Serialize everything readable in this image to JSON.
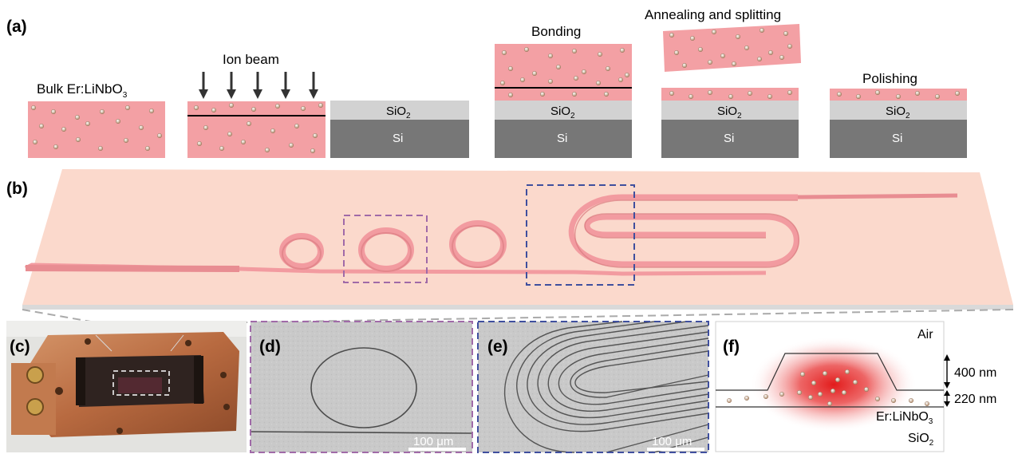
{
  "panels": {
    "a": "(a)",
    "b": "(b)",
    "c": "(c)",
    "d": "(d)",
    "e": "(e)",
    "f": "(f)"
  },
  "panel_a": {
    "bulk_label": "Bulk Er:LiNbO",
    "bulk_sub": "3",
    "ion_beam": "Ion beam",
    "bonding": "Bonding",
    "annealing": "Annealing and splitting",
    "polishing": "Polishing",
    "sio2": "SiO",
    "sio2_sub": "2",
    "si": "Si"
  },
  "panel_d": {
    "scale_bar": "100 μm"
  },
  "panel_e": {
    "scale_bar": "100 μm"
  },
  "panel_f": {
    "air": "Air",
    "thickness_top": "400 nm",
    "thickness_bottom": "220 nm",
    "film": "Er:LiNbO",
    "film_sub": "3",
    "substrate": "SiO",
    "substrate_sub": "2"
  },
  "colors": {
    "lithium_niobate": "#f3a0a4",
    "sio2": "#d2d2d2",
    "si": "#777777",
    "chip_surface": "#fbd9cc",
    "waveguide": "#f29ba0",
    "box_purple": "#a06aa8",
    "box_blue": "#3f4f9e"
  }
}
